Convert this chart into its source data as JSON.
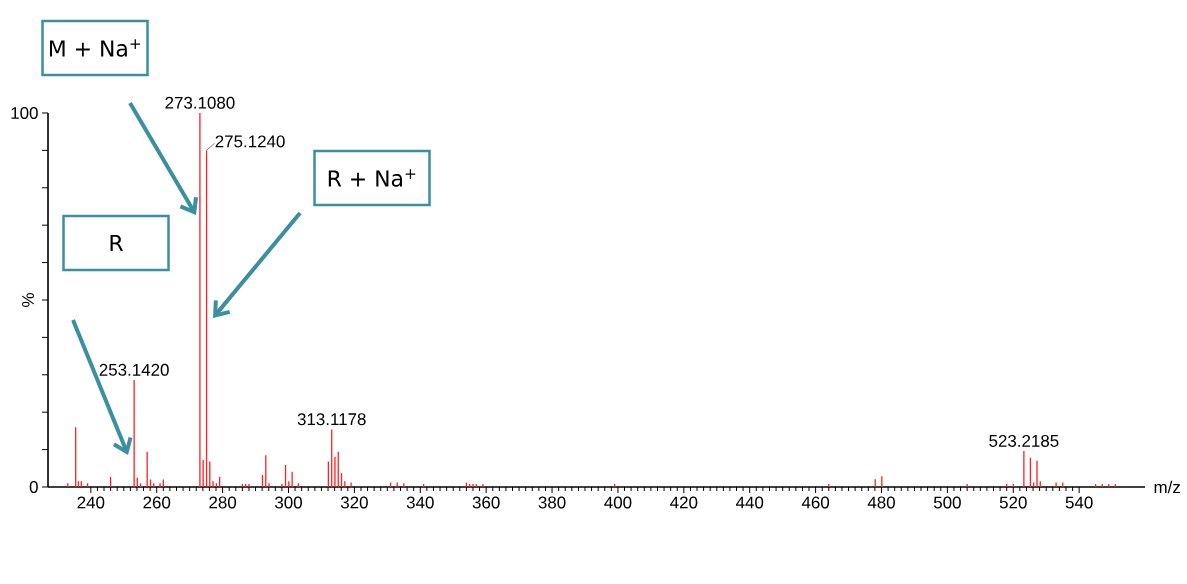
{
  "chart_data": {
    "type": "bar",
    "color": "#ff2020",
    "xlabel": "m/z",
    "ylabel": "%",
    "xlim": [
      227,
      560
    ],
    "ylim": [
      0,
      100
    ],
    "xticks": [
      240,
      260,
      280,
      300,
      320,
      340,
      360,
      380,
      400,
      420,
      440,
      460,
      480,
      500,
      520,
      540
    ],
    "yticks": [
      0,
      {
        "value": 10,
        "label": null
      },
      {
        "value": 20,
        "label": null
      },
      {
        "value": 30,
        "label": null
      },
      {
        "value": 40,
        "label": null
      },
      {
        "value": 50,
        "label": null
      },
      {
        "value": 60,
        "label": null
      },
      {
        "value": 70,
        "label": null
      },
      {
        "value": 80,
        "label": null
      },
      {
        "value": 90,
        "label": null
      },
      100
    ],
    "x": [
      233,
      235.4,
      236.2,
      237.1,
      239,
      246,
      253.142,
      254.1,
      255.1,
      257.1,
      258.1,
      259.1,
      261,
      262,
      273.108,
      274.1,
      275.124,
      276.1,
      277.1,
      278.1,
      279.1,
      286,
      287,
      288,
      292.1,
      293.1,
      294.1,
      298,
      299.1,
      300.1,
      301.1,
      303,
      312.1,
      313.1178,
      314.1,
      315.1,
      316.1,
      317.1,
      319,
      331,
      333,
      335,
      341,
      354,
      355,
      356,
      357,
      359,
      399,
      464,
      478.1,
      480.1,
      506,
      518,
      520,
      523.2185,
      525.2,
      526.2,
      527.2,
      528.2,
      533,
      535,
      545,
      547,
      549,
      551
    ],
    "values": [
      1,
      16,
      1.5,
      1.5,
      1,
      2.7,
      28.6,
      2.5,
      1,
      9.4,
      2,
      1,
      1,
      2,
      100,
      7.2,
      90,
      6.8,
      1.5,
      1,
      2.7,
      0.8,
      0.8,
      0.8,
      3.2,
      8.5,
      1,
      0.8,
      5.9,
      1.5,
      4.1,
      1,
      6.8,
      15.4,
      8.1,
      9.4,
      3.7,
      1.5,
      1.2,
      1.2,
      1.2,
      1,
      0.8,
      1.2,
      0.8,
      0.8,
      0.8,
      0.8,
      0.8,
      0.8,
      2.1,
      2.9,
      0.8,
      0.8,
      0.8,
      9.6,
      7.8,
      1.2,
      7.0,
      1.5,
      1.2,
      1.2,
      0.8,
      0.8,
      0.8,
      0.8
    ],
    "annotations": [
      {
        "text": "273.1080",
        "x": 273.108,
        "y": 100
      },
      {
        "text": "275.1240",
        "x": 275.124,
        "y": 90
      },
      {
        "text": "253.1420",
        "x": 253.142,
        "y": 28.6
      },
      {
        "text": "313.1178",
        "x": 313.1178,
        "y": 15.4
      },
      {
        "text": "523.2185",
        "x": 523.2185,
        "y": 9.6
      },
      "M + Na$^{+}$",
      "R + Na$^{+}$",
      "R"
    ]
  }
}
